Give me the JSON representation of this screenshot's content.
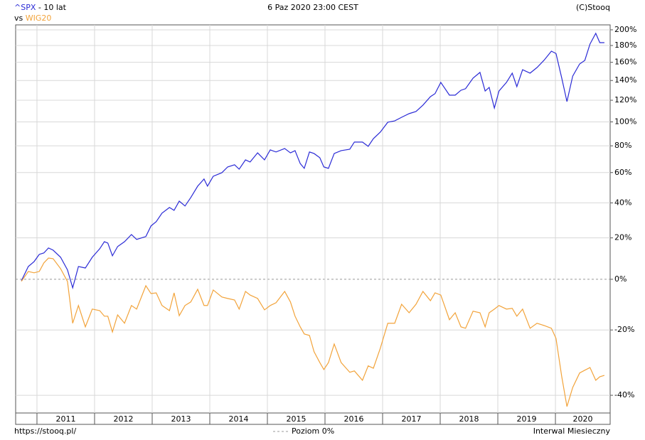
{
  "chart_data": {
    "type": "line",
    "period": "- 10 lat",
    "vs": "vs",
    "date": "6 Paz 2020 23:00 CEST",
    "copyright": "(C)Stooq",
    "source": "https://stooq.pl/",
    "zero_line_label": "Poziom 0%",
    "interval": "Interwal Miesieczny",
    "log_scale": true,
    "grid": true,
    "xlim": [
      2010.63,
      2020.95
    ],
    "xticks": [
      2011,
      2012,
      2013,
      2014,
      2015,
      2016,
      2017,
      2018,
      2019,
      2020
    ],
    "ylim": [
      -44.5,
      206.6
    ],
    "yticks": [
      {
        "value": 200,
        "label": "200%"
      },
      {
        "value": 180,
        "label": "180%"
      },
      {
        "value": 160,
        "label": "160%"
      },
      {
        "value": 140,
        "label": "140%"
      },
      {
        "value": 120,
        "label": "120%"
      },
      {
        "value": 100,
        "label": "100%"
      },
      {
        "value": 80,
        "label": "80%"
      },
      {
        "value": 60,
        "label": "60%"
      },
      {
        "value": 40,
        "label": "40%"
      },
      {
        "value": 20,
        "label": "20%"
      },
      {
        "value": 0,
        "label": "0%"
      },
      {
        "value": -20,
        "label": "-20%"
      },
      {
        "value": -40,
        "label": "-40%"
      }
    ],
    "x": [
      2010.73,
      2010.85,
      2010.95,
      2011.04,
      2011.12,
      2011.2,
      2011.28,
      2011.41,
      2011.53,
      2011.62,
      2011.72,
      2011.84,
      2011.96,
      2012.09,
      2012.17,
      2012.23,
      2012.31,
      2012.4,
      2012.52,
      2012.64,
      2012.73,
      2012.89,
      2012.98,
      2013.07,
      2013.17,
      2013.3,
      2013.38,
      2013.47,
      2013.57,
      2013.67,
      2013.79,
      2013.9,
      2013.96,
      2014.06,
      2014.21,
      2014.31,
      2014.43,
      2014.51,
      2014.62,
      2014.7,
      2014.83,
      2014.95,
      2015.05,
      2015.15,
      2015.3,
      2015.4,
      2015.48,
      2015.57,
      2015.64,
      2015.73,
      2015.81,
      2015.91,
      2015.98,
      2016.06,
      2016.16,
      2016.28,
      2016.43,
      2016.51,
      2016.65,
      2016.75,
      2016.84,
      2016.96,
      2017.09,
      2017.21,
      2017.33,
      2017.46,
      2017.58,
      2017.7,
      2017.83,
      2017.91,
      2018.01,
      2018.16,
      2018.26,
      2018.36,
      2018.44,
      2018.57,
      2018.69,
      2018.78,
      2018.85,
      2018.94,
      2019.02,
      2019.15,
      2019.25,
      2019.33,
      2019.43,
      2019.56,
      2019.68,
      2019.8,
      2019.93,
      2020.01,
      2020.11,
      2020.2,
      2020.3,
      2020.42,
      2020.51,
      2020.6,
      2020.7,
      2020.77,
      2020.85
    ],
    "series": [
      {
        "name": "^SPX",
        "color": "#2b2bd6",
        "values": [
          -0.6,
          5.8,
          8.1,
          11.6,
          12.3,
          14.8,
          13.7,
          10.2,
          4.2,
          -3.7,
          5.8,
          5.1,
          10.2,
          14.4,
          18.0,
          17.3,
          10.9,
          15.5,
          18.0,
          21.8,
          19.2,
          20.7,
          26.5,
          28.9,
          33.8,
          37.2,
          35.5,
          41.1,
          38.1,
          43.3,
          50.7,
          55.5,
          50.7,
          57.4,
          59.9,
          64.0,
          65.6,
          62.4,
          69.2,
          67.6,
          74.5,
          69.2,
          76.8,
          75.2,
          77.9,
          74.5,
          76.2,
          66.5,
          63.0,
          75.2,
          74.0,
          70.8,
          64.0,
          63.0,
          74.0,
          76.2,
          77.3,
          83.0,
          83.0,
          79.6,
          85.8,
          91.2,
          99.7,
          100.9,
          104.1,
          107.4,
          109.4,
          115.3,
          123.5,
          126.5,
          138.0,
          125.0,
          125.0,
          129.9,
          131.5,
          142.5,
          148.7,
          129.1,
          132.8,
          112.6,
          129.1,
          138.0,
          147.9,
          133.6,
          151.7,
          147.9,
          154.1,
          162.2,
          173.1,
          170.3,
          142.5,
          118.7,
          144.7,
          158.1,
          162.2,
          181.8,
          195.4,
          183.5,
          183.5
        ]
      },
      {
        "name": "WIG20",
        "color": "#f2a33a",
        "values": [
          -0.9,
          3.5,
          2.9,
          3.5,
          7.5,
          9.8,
          9.5,
          4.8,
          -1.0,
          -17.6,
          -10.9,
          -18.9,
          -12.3,
          -12.9,
          -15.0,
          -15.0,
          -20.7,
          -14.5,
          -17.6,
          -10.9,
          -12.3,
          -2.8,
          -6.1,
          -5.8,
          -10.9,
          -12.9,
          -5.8,
          -14.8,
          -10.9,
          -9.5,
          -4.3,
          -10.9,
          -10.9,
          -4.6,
          -7.5,
          -8.1,
          -8.7,
          -12.3,
          -5.2,
          -6.7,
          -8.1,
          -12.6,
          -10.9,
          -9.8,
          -5.2,
          -9.5,
          -15.0,
          -18.9,
          -21.4,
          -21.9,
          -27.3,
          -30.7,
          -32.8,
          -30.7,
          -24.8,
          -30.7,
          -33.6,
          -33.2,
          -35.9,
          -31.7,
          -32.4,
          -26.2,
          -17.6,
          -17.6,
          -10.4,
          -13.7,
          -10.4,
          -5.2,
          -9.0,
          -5.8,
          -6.7,
          -16.3,
          -13.7,
          -18.9,
          -19.4,
          -13.1,
          -13.7,
          -18.9,
          -13.7,
          -12.3,
          -10.9,
          -12.3,
          -12.0,
          -15.0,
          -12.3,
          -19.4,
          -17.6,
          -18.4,
          -19.4,
          -22.9,
          -34.9,
          -42.9,
          -37.9,
          -33.8,
          -33.0,
          -32.2,
          -35.9,
          -34.9,
          -34.5
        ]
      }
    ]
  }
}
